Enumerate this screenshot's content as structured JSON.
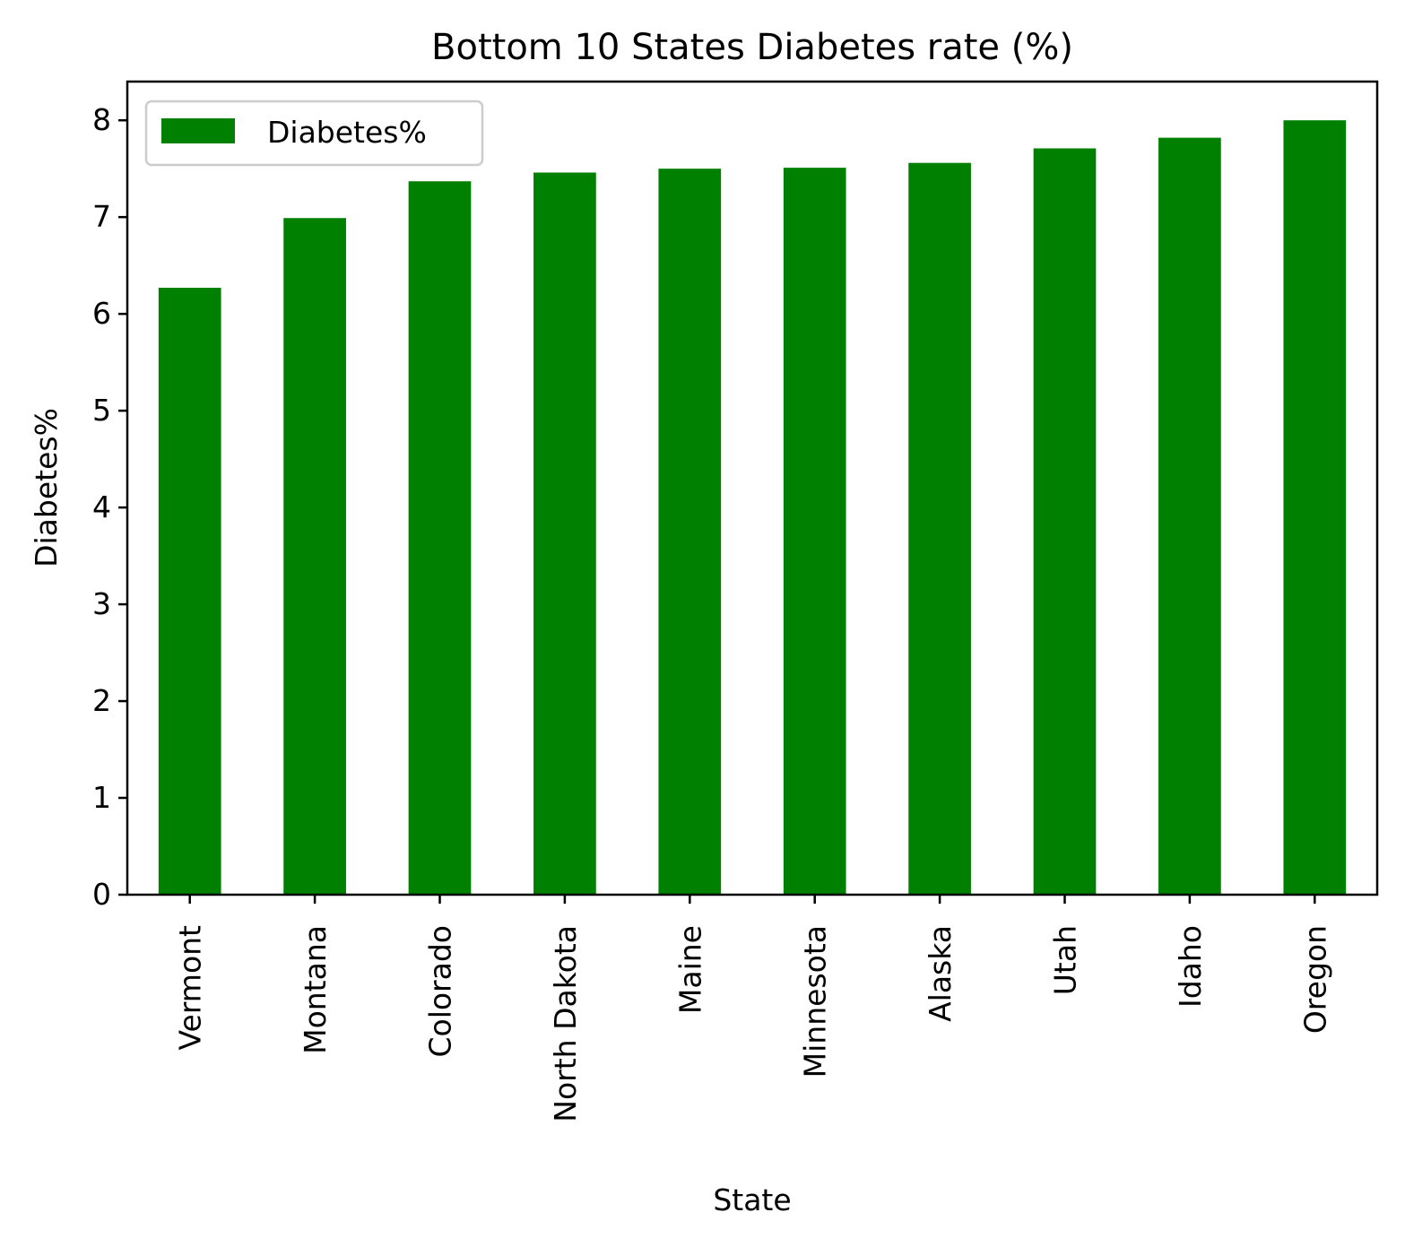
{
  "chart_data": {
    "type": "bar",
    "title": "Bottom 10 States Diabetes rate (%)",
    "xlabel": "State",
    "ylabel": "Diabetes%",
    "categories": [
      "Vermont",
      "Montana",
      "Colorado",
      "North Dakota",
      "Maine",
      "Minnesota",
      "Alaska",
      "Utah",
      "Idaho",
      "Oregon"
    ],
    "series": [
      {
        "name": "Diabetes%",
        "values": [
          6.27,
          6.99,
          7.37,
          7.46,
          7.5,
          7.51,
          7.56,
          7.71,
          7.82,
          8.0
        ],
        "color": "#008000"
      }
    ],
    "ylim": [
      0,
      8.4
    ],
    "yticks": [
      0,
      1,
      2,
      3,
      4,
      5,
      6,
      7,
      8
    ],
    "grid": false,
    "legend_position": "top-left"
  }
}
